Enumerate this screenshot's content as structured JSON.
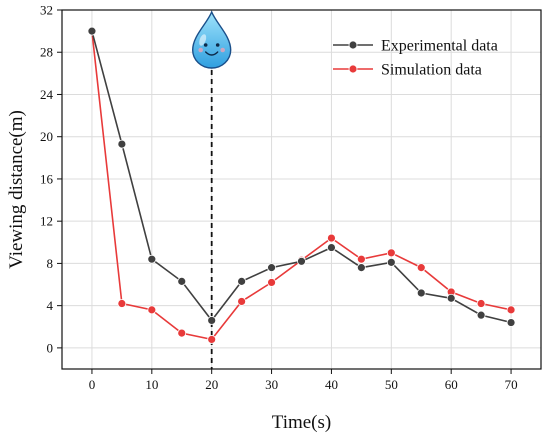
{
  "chart_data": {
    "type": "line",
    "title": "",
    "xlabel": "Time(s)",
    "ylabel": "Viewing distance(m)",
    "xlim": [
      -5,
      75
    ],
    "ylim": [
      -2,
      32
    ],
    "xticks": [
      0,
      10,
      20,
      30,
      40,
      50,
      60,
      70
    ],
    "yticks": [
      0,
      4,
      8,
      12,
      16,
      20,
      24,
      28,
      32
    ],
    "grid": true,
    "legend_position": "top-right",
    "annotation": {
      "type": "vertical-dashed-line",
      "x": 20,
      "icon": "water-drop-smiley-icon"
    },
    "series": [
      {
        "name": "Experimental data",
        "color": "#404040",
        "x": [
          0,
          5,
          10,
          15,
          20,
          25,
          30,
          35,
          40,
          45,
          50,
          55,
          60,
          65,
          70
        ],
        "y": [
          30,
          19.3,
          8.4,
          6.3,
          2.6,
          6.3,
          7.6,
          8.2,
          9.5,
          7.6,
          8.1,
          5.2,
          4.7,
          3.1,
          2.4
        ]
      },
      {
        "name": "Simulation data",
        "color": "#e83a3a",
        "x": [
          0,
          5,
          10,
          15,
          20,
          25,
          30,
          35,
          40,
          45,
          50,
          55,
          60,
          65,
          70
        ],
        "y": [
          30,
          4.2,
          3.6,
          1.4,
          0.8,
          4.4,
          6.2,
          8.3,
          10.4,
          8.4,
          9.0,
          7.6,
          5.3,
          4.2,
          3.6
        ]
      }
    ]
  }
}
